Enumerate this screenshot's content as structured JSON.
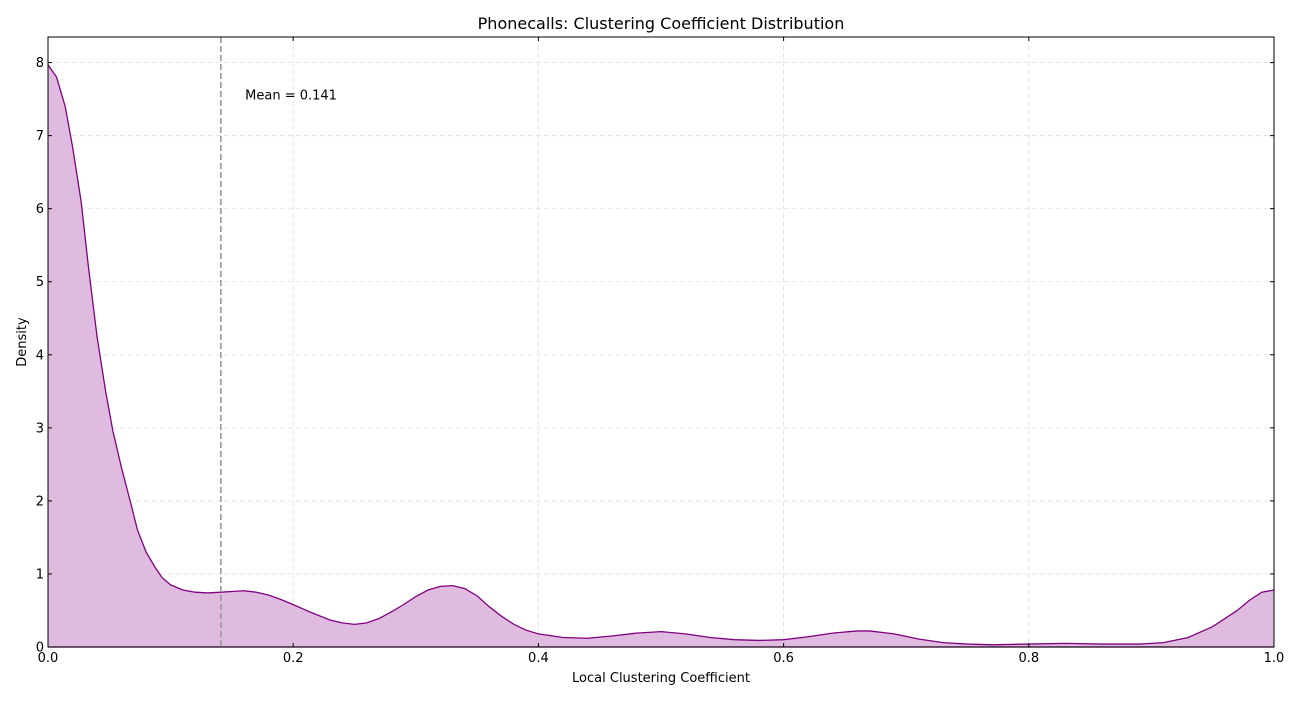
{
  "chart_data": {
    "type": "area",
    "title": "Phonecalls: Clustering Coefficient Distribution",
    "xlabel": "Local Clustering Coefficient",
    "ylabel": "Density",
    "xlim": [
      0.0,
      1.0
    ],
    "ylim": [
      0,
      8.35
    ],
    "xticks": [
      0.0,
      0.2,
      0.4,
      0.6,
      0.8,
      1.0
    ],
    "xtick_labels": [
      "0.0",
      "0.2",
      "0.4",
      "0.6",
      "0.8",
      "1.0"
    ],
    "yticks": [
      0,
      1,
      2,
      3,
      4,
      5,
      6,
      7,
      8
    ],
    "ytick_labels": [
      "0",
      "1",
      "2",
      "3",
      "4",
      "5",
      "6",
      "7",
      "8"
    ],
    "grid": true,
    "series": [
      {
        "color": "#800080",
        "fill_color": "#dfbcdf",
        "x": [
          0.0,
          0.007,
          0.014,
          0.02,
          0.027,
          0.033,
          0.04,
          0.047,
          0.053,
          0.06,
          0.067,
          0.073,
          0.08,
          0.087,
          0.093,
          0.1,
          0.11,
          0.12,
          0.13,
          0.141,
          0.15,
          0.16,
          0.17,
          0.18,
          0.19,
          0.2,
          0.215,
          0.23,
          0.24,
          0.25,
          0.26,
          0.27,
          0.28,
          0.29,
          0.3,
          0.31,
          0.32,
          0.33,
          0.34,
          0.35,
          0.36,
          0.37,
          0.38,
          0.39,
          0.4,
          0.42,
          0.44,
          0.46,
          0.48,
          0.5,
          0.52,
          0.54,
          0.56,
          0.58,
          0.6,
          0.62,
          0.64,
          0.66,
          0.67,
          0.69,
          0.71,
          0.73,
          0.75,
          0.77,
          0.8,
          0.83,
          0.86,
          0.89,
          0.91,
          0.93,
          0.95,
          0.97,
          0.98,
          0.99,
          1.0
        ],
        "y": [
          7.97,
          7.8,
          7.4,
          6.85,
          6.1,
          5.2,
          4.25,
          3.5,
          2.95,
          2.45,
          2.0,
          1.6,
          1.3,
          1.1,
          0.95,
          0.85,
          0.78,
          0.75,
          0.74,
          0.75,
          0.76,
          0.77,
          0.75,
          0.71,
          0.65,
          0.58,
          0.47,
          0.37,
          0.33,
          0.31,
          0.33,
          0.39,
          0.48,
          0.58,
          0.69,
          0.78,
          0.83,
          0.84,
          0.8,
          0.7,
          0.55,
          0.42,
          0.31,
          0.23,
          0.18,
          0.13,
          0.12,
          0.15,
          0.19,
          0.21,
          0.18,
          0.13,
          0.1,
          0.09,
          0.1,
          0.14,
          0.19,
          0.22,
          0.22,
          0.18,
          0.11,
          0.06,
          0.04,
          0.03,
          0.04,
          0.05,
          0.04,
          0.04,
          0.06,
          0.13,
          0.28,
          0.5,
          0.64,
          0.75,
          0.78
        ]
      }
    ],
    "annotations": [
      {
        "type": "vline",
        "x": 0.141,
        "color": "#999999",
        "style": "dashed"
      },
      {
        "type": "text",
        "x": 0.16,
        "y": 7.55,
        "text": "Mean = 0.141"
      }
    ]
  }
}
